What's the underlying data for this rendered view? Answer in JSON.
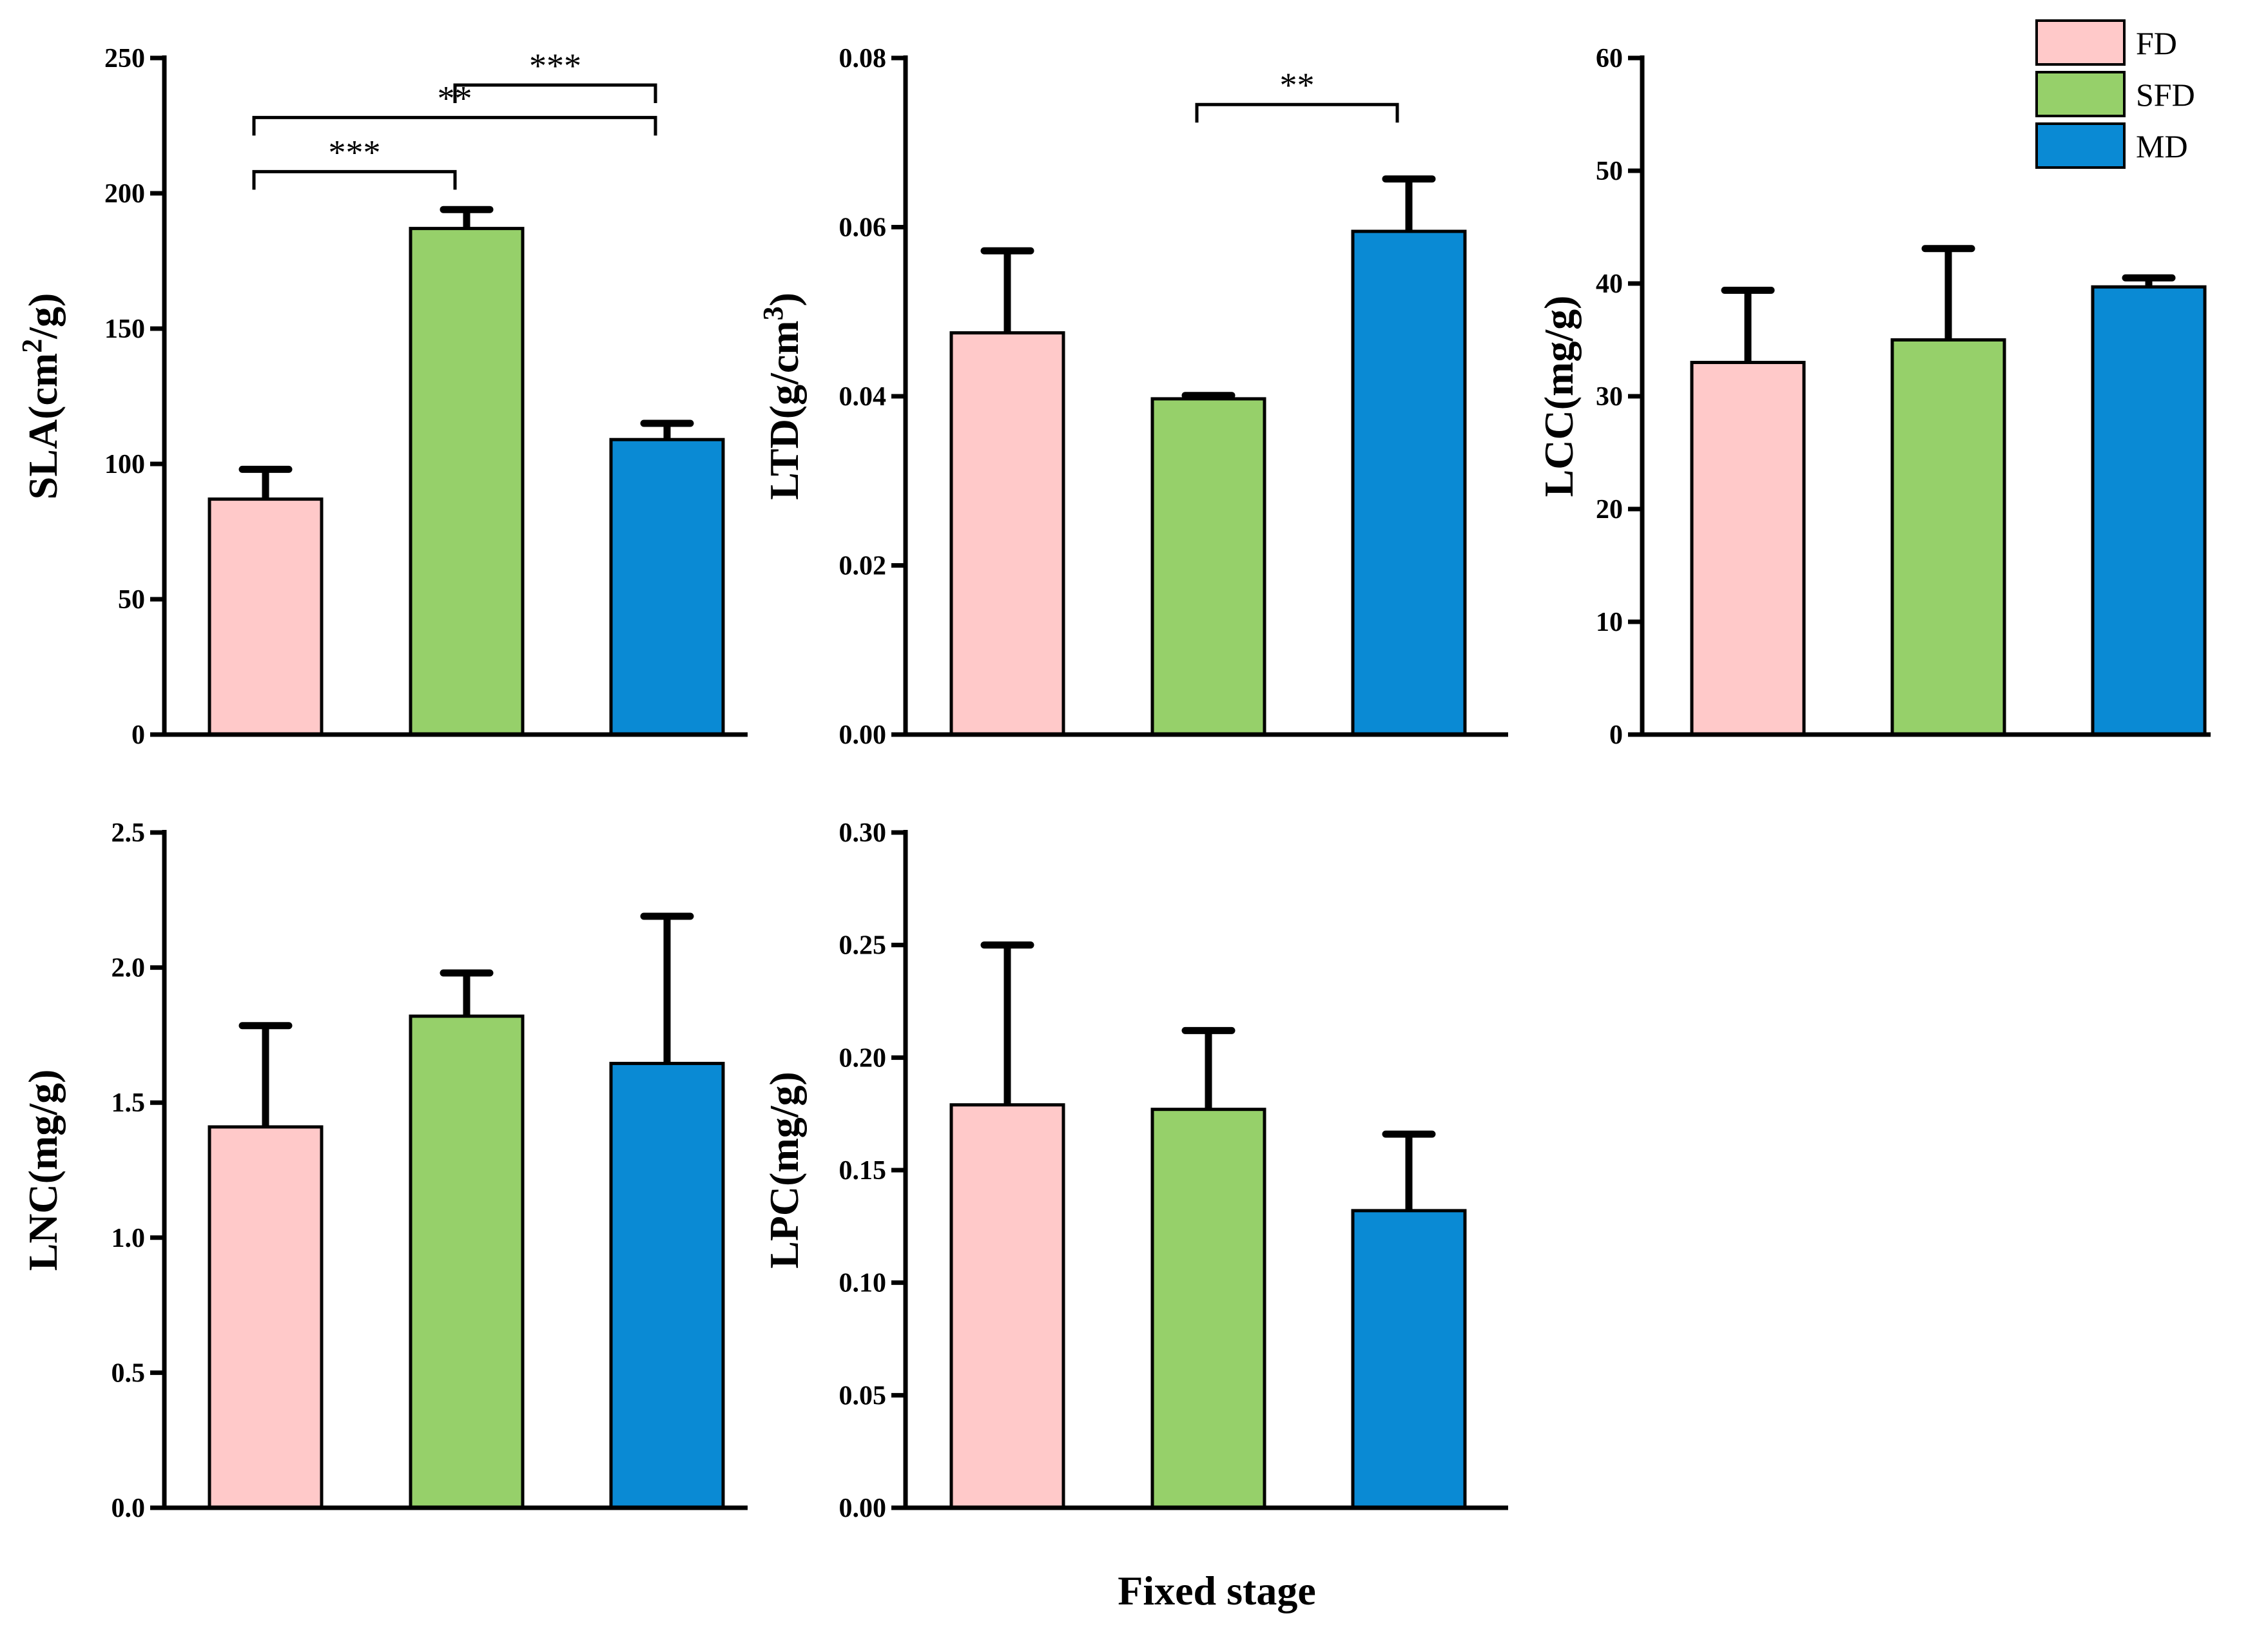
{
  "colors": {
    "FD": "#ffc9c9",
    "SFD": "#96d06a",
    "MD": "#0a8ad4"
  },
  "legend": [
    {
      "label": "FD",
      "color": "#ffc9c9"
    },
    {
      "label": "SFD",
      "color": "#96d06a"
    },
    {
      "label": "MD",
      "color": "#0a8ad4"
    }
  ],
  "x_title": "Fixed stage",
  "chart_data": [
    {
      "type": "bar",
      "id": "SLA",
      "ylabel_main": "SLA(cm",
      "ylabel_sup": "2",
      "ylabel_tail": "/g)",
      "categories": [
        "FD",
        "SFD",
        "MD"
      ],
      "values": [
        87,
        187,
        109
      ],
      "errors": [
        11,
        7,
        6
      ],
      "ylim": [
        0,
        250
      ],
      "ticks": [
        0,
        50,
        100,
        150,
        200,
        250
      ],
      "tick_labels": [
        "0",
        "50",
        "100",
        "150",
        "200",
        "250"
      ],
      "significance": [
        {
          "from": 1,
          "to": 2,
          "label": "***",
          "level": 240
        },
        {
          "from": 0,
          "to": 2,
          "label": "**",
          "level": 228
        },
        {
          "from": 0,
          "to": 1,
          "label": "***",
          "level": 208
        }
      ]
    },
    {
      "type": "bar",
      "id": "LTD",
      "ylabel_main": "LTD(g/cm",
      "ylabel_sup": "3",
      "ylabel_tail": ")",
      "categories": [
        "FD",
        "SFD",
        "MD"
      ],
      "values": [
        0.0475,
        0.0397,
        0.0595
      ],
      "errors": [
        0.0097,
        0.0004,
        0.0062
      ],
      "ylim": [
        0,
        0.08
      ],
      "ticks": [
        0,
        0.02,
        0.04,
        0.06,
        0.08
      ],
      "tick_labels": [
        "0.00",
        "0.02",
        "0.04",
        "0.06",
        "0.08"
      ],
      "significance": [
        {
          "from": 1,
          "to": 2,
          "label": "**",
          "level": 0.0745
        }
      ]
    },
    {
      "type": "bar",
      "id": "LCC",
      "ylabel_main": "LCC(mg/g)",
      "ylabel_sup": "",
      "ylabel_tail": "",
      "categories": [
        "FD",
        "SFD",
        "MD"
      ],
      "values": [
        33,
        35,
        39.7
      ],
      "errors": [
        6.4,
        8.1,
        0.8
      ],
      "ylim": [
        0,
        60
      ],
      "ticks": [
        0,
        10,
        20,
        30,
        40,
        50,
        60
      ],
      "tick_labels": [
        "0",
        "10",
        "20",
        "30",
        "40",
        "50",
        "60"
      ],
      "significance": []
    },
    {
      "type": "bar",
      "id": "LNC",
      "ylabel_main": "LNC(mg/g)",
      "ylabel_sup": "",
      "ylabel_tail": "",
      "categories": [
        "FD",
        "SFD",
        "MD"
      ],
      "values": [
        1.41,
        1.82,
        1.645
      ],
      "errors": [
        0.375,
        0.16,
        0.545
      ],
      "ylim": [
        0,
        2.5
      ],
      "ticks": [
        0,
        0.5,
        1.0,
        1.5,
        2.0,
        2.5
      ],
      "tick_labels": [
        "0.0",
        "0.5",
        "1.0",
        "1.5",
        "2.0",
        "2.5"
      ],
      "significance": []
    },
    {
      "type": "bar",
      "id": "LPC",
      "ylabel_main": "LPC(mg/g)",
      "ylabel_sup": "",
      "ylabel_tail": "",
      "categories": [
        "FD",
        "SFD",
        "MD"
      ],
      "values": [
        0.179,
        0.177,
        0.132
      ],
      "errors": [
        0.071,
        0.035,
        0.034
      ],
      "ylim": [
        0,
        0.3
      ],
      "ticks": [
        0,
        0.05,
        0.1,
        0.15,
        0.2,
        0.25,
        0.3
      ],
      "tick_labels": [
        "0.00",
        "0.05",
        "0.10",
        "0.15",
        "0.20",
        "0.25",
        "0.30"
      ],
      "significance": []
    }
  ]
}
